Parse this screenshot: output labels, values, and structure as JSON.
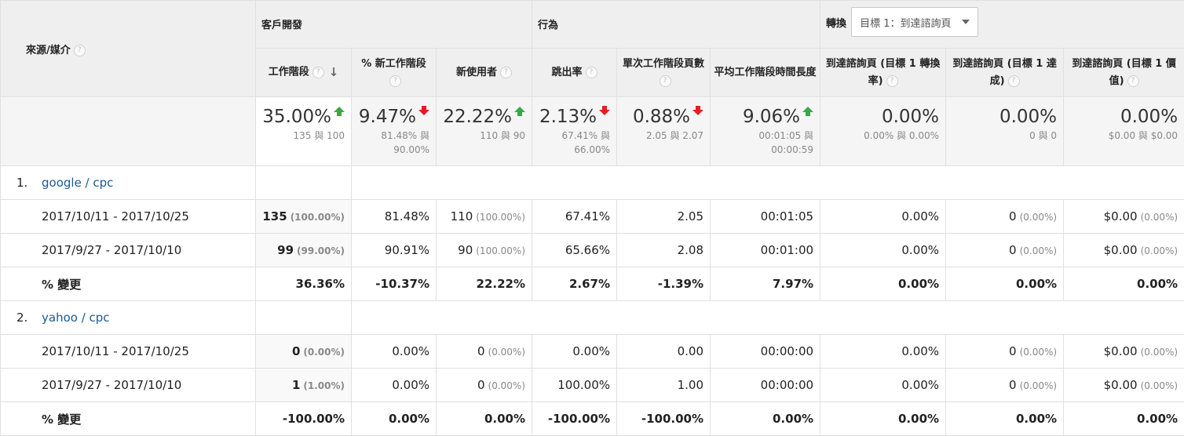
{
  "header": {
    "source_label": "來源/媒介",
    "groups": {
      "acquisition": "客戶開發",
      "behavior": "行為",
      "conversions": "轉換"
    },
    "goal_select": "目標 1：到達諮詢頁",
    "columns": [
      "工作階段",
      "% 新工作階段",
      "新使用者",
      "跳出率",
      "單次工作階段頁數",
      "平均工作階段時間長度",
      "到達諮詢頁 (目標 1 轉換率)",
      "到達諮詢頁 (目標 1 達成)",
      "到達諮詢頁 (目標 1 價值)"
    ]
  },
  "totals": [
    {
      "value": "35.00%",
      "trend": "up",
      "compare": "135 與 100"
    },
    {
      "value": "9.47%",
      "trend": "down",
      "compare": "81.48% 與 90.00%"
    },
    {
      "value": "22.22%",
      "trend": "up",
      "compare": "110 與 90"
    },
    {
      "value": "2.13%",
      "trend": "down",
      "compare": "67.41% 與 66.00%"
    },
    {
      "value": "0.88%",
      "trend": "down",
      "compare": "2.05 與 2.07"
    },
    {
      "value": "9.06%",
      "trend": "up",
      "compare": "00:01:05 與 00:00:59"
    },
    {
      "value": "0.00%",
      "trend": "",
      "compare": "0.00% 與 0.00%"
    },
    {
      "value": "0.00%",
      "trend": "",
      "compare": "0 與 0"
    },
    {
      "value": "0.00%",
      "trend": "",
      "compare": "$0.00 與 $0.00"
    }
  ],
  "sources": [
    {
      "index": "1.",
      "name": "google / cpc",
      "rows": [
        {
          "label": "2017/10/11 - 2017/10/25",
          "cells": [
            [
              "135",
              "(100.00%)"
            ],
            [
              "81.48%",
              ""
            ],
            [
              "110",
              "(100.00%)"
            ],
            [
              "67.41%",
              ""
            ],
            [
              "2.05",
              ""
            ],
            [
              "00:01:05",
              ""
            ],
            [
              "0.00%",
              ""
            ],
            [
              "0",
              "(0.00%)"
            ],
            [
              "$0.00",
              "(0.00%)"
            ]
          ]
        },
        {
          "label": "2017/9/27 - 2017/10/10",
          "cells": [
            [
              "99",
              "(99.00%)"
            ],
            [
              "90.91%",
              ""
            ],
            [
              "90",
              "(100.00%)"
            ],
            [
              "65.66%",
              ""
            ],
            [
              "2.08",
              ""
            ],
            [
              "00:01:00",
              ""
            ],
            [
              "0.00%",
              ""
            ],
            [
              "0",
              "(0.00%)"
            ],
            [
              "$0.00",
              "(0.00%)"
            ]
          ]
        },
        {
          "label": "% 變更",
          "cells": [
            [
              "36.36%",
              ""
            ],
            [
              "-10.37%",
              ""
            ],
            [
              "22.22%",
              ""
            ],
            [
              "2.67%",
              ""
            ],
            [
              "-1.39%",
              ""
            ],
            [
              "7.97%",
              ""
            ],
            [
              "0.00%",
              ""
            ],
            [
              "0.00%",
              ""
            ],
            [
              "0.00%",
              ""
            ]
          ]
        }
      ]
    },
    {
      "index": "2.",
      "name": "yahoo / cpc",
      "rows": [
        {
          "label": "2017/10/11 - 2017/10/25",
          "cells": [
            [
              "0",
              "(0.00%)"
            ],
            [
              "0.00%",
              ""
            ],
            [
              "0",
              "(0.00%)"
            ],
            [
              "0.00%",
              ""
            ],
            [
              "0.00",
              ""
            ],
            [
              "00:00:00",
              ""
            ],
            [
              "0.00%",
              ""
            ],
            [
              "0",
              "(0.00%)"
            ],
            [
              "$0.00",
              "(0.00%)"
            ]
          ]
        },
        {
          "label": "2017/9/27 - 2017/10/10",
          "cells": [
            [
              "1",
              "(1.00%)"
            ],
            [
              "0.00%",
              ""
            ],
            [
              "0",
              "(0.00%)"
            ],
            [
              "100.00%",
              ""
            ],
            [
              "1.00",
              ""
            ],
            [
              "00:00:00",
              ""
            ],
            [
              "0.00%",
              ""
            ],
            [
              "0",
              "(0.00%)"
            ],
            [
              "$0.00",
              "(0.00%)"
            ]
          ]
        },
        {
          "label": "% 變更",
          "cells": [
            [
              "-100.00%",
              ""
            ],
            [
              "0.00%",
              ""
            ],
            [
              "0.00%",
              ""
            ],
            [
              "-100.00%",
              ""
            ],
            [
              "-100.00%",
              ""
            ],
            [
              "0.00%",
              ""
            ],
            [
              "0.00%",
              ""
            ],
            [
              "0.00%",
              ""
            ],
            [
              "0.00%",
              ""
            ]
          ]
        }
      ]
    }
  ]
}
